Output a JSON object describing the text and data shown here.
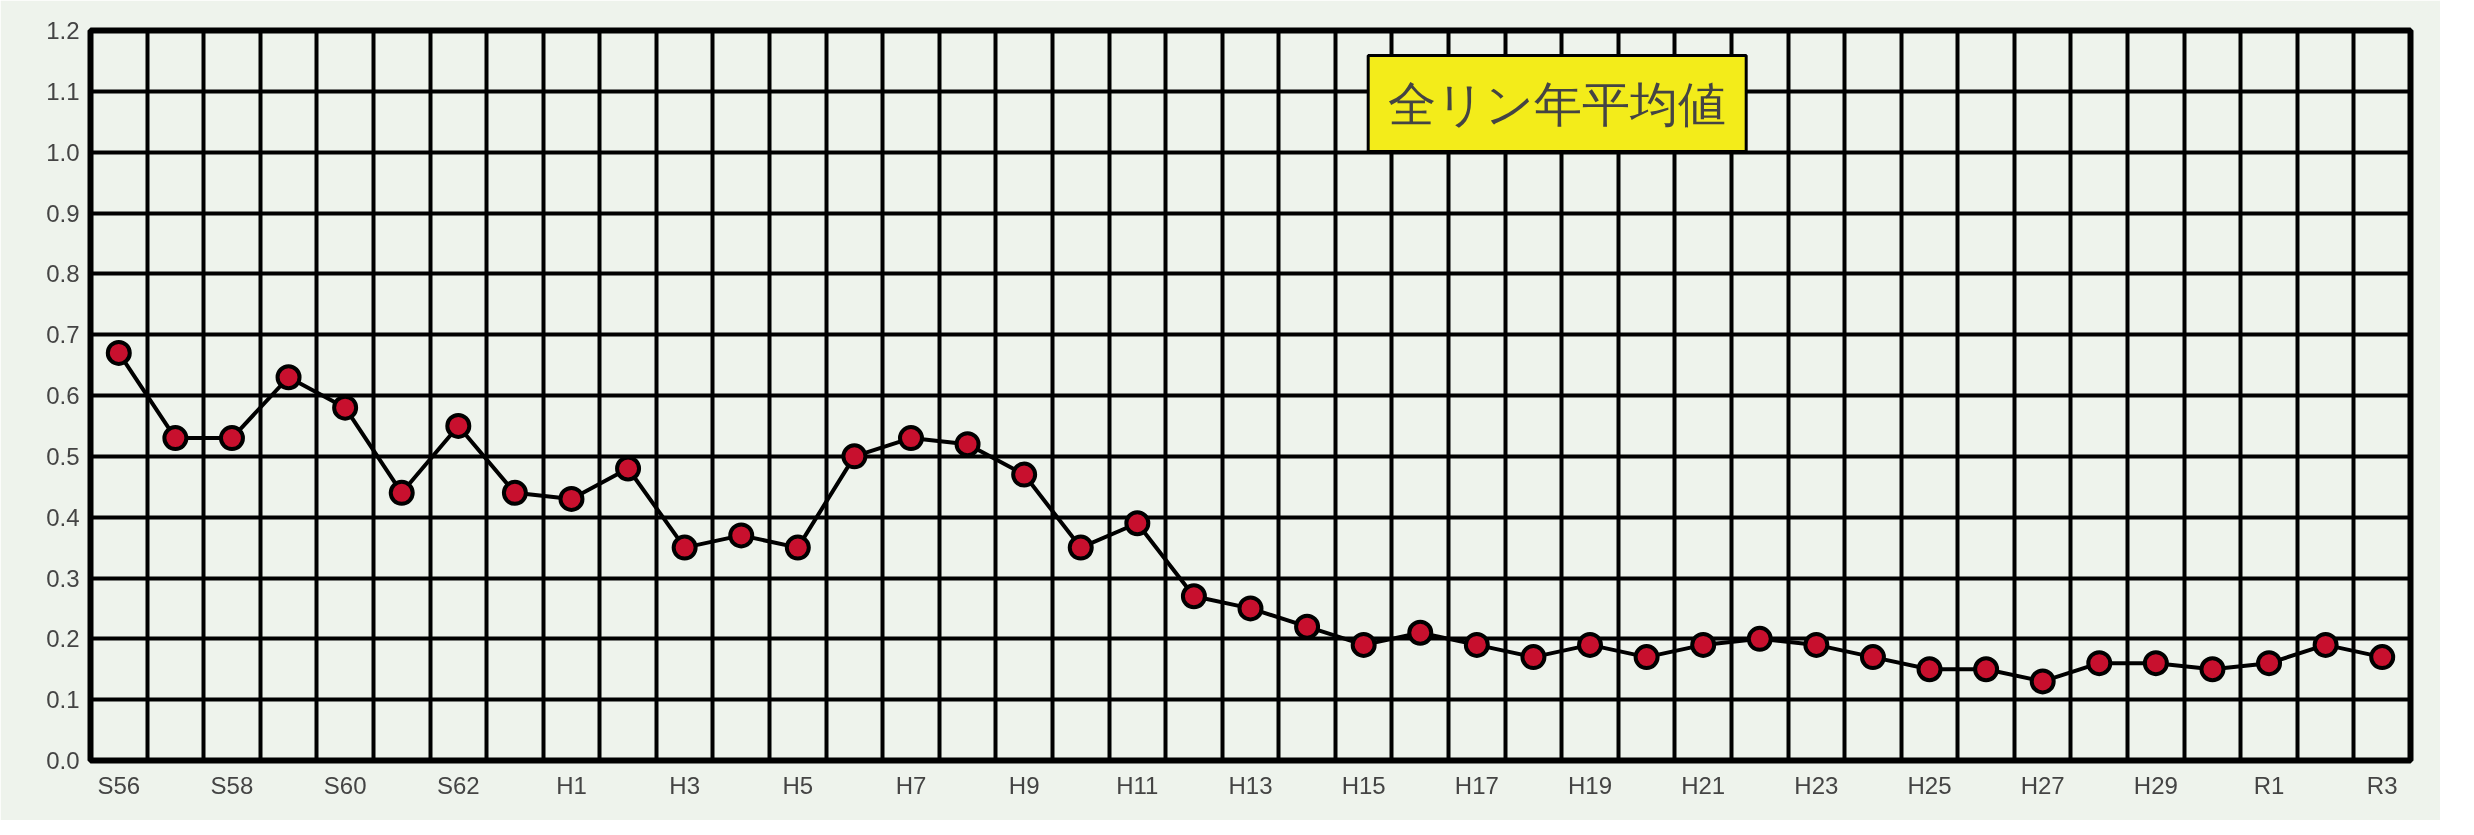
{
  "chart_data": {
    "type": "line",
    "title": "全リン年平均値",
    "categories": [
      "S56",
      null,
      "S58",
      null,
      "S60",
      null,
      "S62",
      null,
      "H1",
      null,
      "H3",
      null,
      "H5",
      null,
      "H7",
      null,
      "H9",
      null,
      "H11",
      null,
      "H13",
      null,
      "H15",
      null,
      "H17",
      null,
      "H19",
      null,
      "H21",
      null,
      "H23",
      null,
      "H25",
      null,
      "H27",
      null,
      "H29",
      null,
      "R1",
      null,
      "R3"
    ],
    "series": [
      {
        "color": "#c8102e",
        "values": [
          0.67,
          0.53,
          0.53,
          0.63,
          0.58,
          0.44,
          0.55,
          0.44,
          0.43,
          0.48,
          0.35,
          0.37,
          0.35,
          0.5,
          0.53,
          0.52,
          0.47,
          0.35,
          0.39,
          0.27,
          0.25,
          0.22,
          0.19,
          0.21,
          0.19,
          0.17,
          0.19,
          0.17,
          0.19,
          0.2,
          0.19,
          0.17,
          0.15,
          0.15,
          0.13,
          0.16,
          0.16,
          0.15,
          0.16,
          0.19,
          0.17
        ]
      }
    ],
    "ylim": [
      0,
      1.2
    ],
    "yticks": [
      {
        "value": 0,
        "label": "0.0"
      },
      0.1,
      0.2,
      0.3,
      0.4,
      0.5,
      0.6,
      0.7,
      0.8,
      0.9,
      {
        "value": 1,
        "label": "1.0"
      },
      1.1,
      1.2
    ],
    "grid": true,
    "marker": "circle",
    "line_style": "solid"
  }
}
